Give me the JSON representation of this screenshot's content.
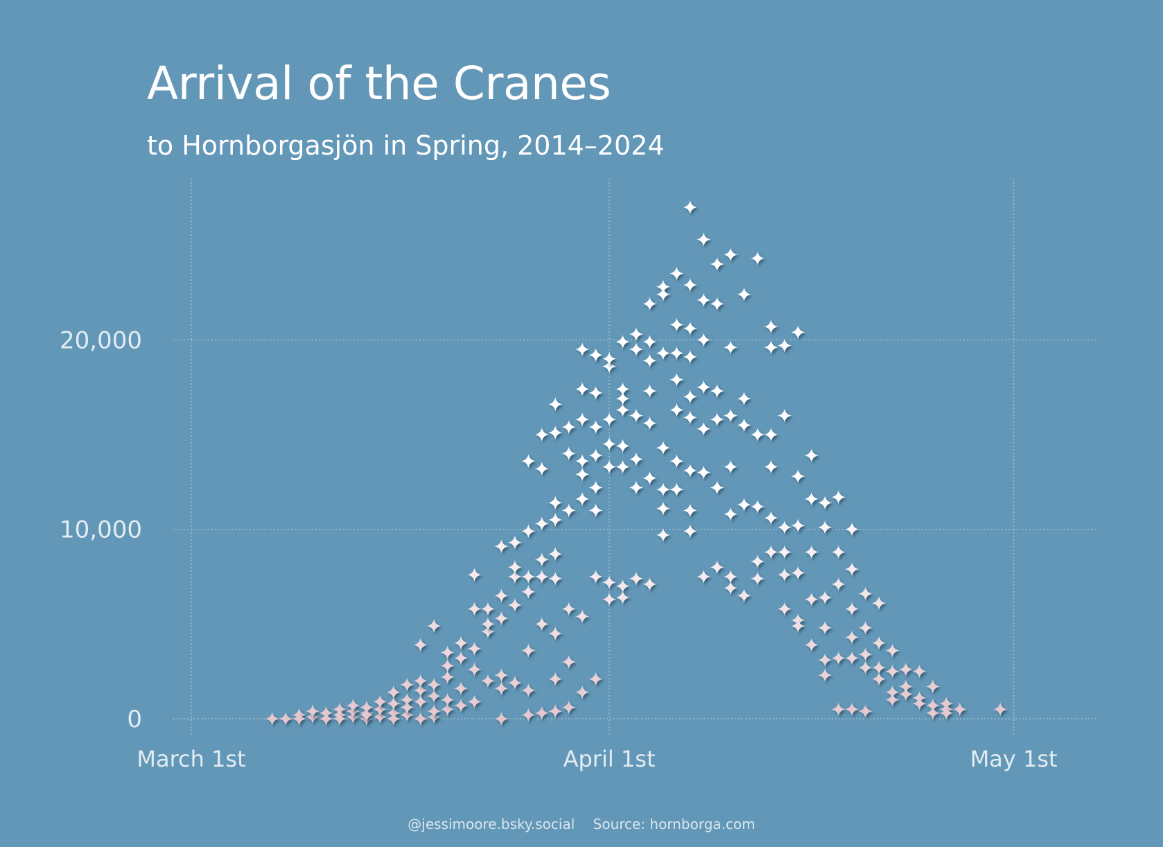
{
  "colors": {
    "background": "#6397b7",
    "grid": "#a9c7da",
    "star_high": "#ffffff",
    "star_low": "#e3c7cf"
  },
  "star_icon": "four-point-star",
  "caption": {
    "author": "@jessimoore.bsky.social",
    "source": "Source: hornborga.com"
  },
  "chart_data": {
    "type": "scatter",
    "title": "Arrival of the Cranes",
    "subtitle": "to Hornborgasjön in Spring, 2014–2024",
    "xlabel": "",
    "ylabel": "",
    "x_ticks": [
      {
        "date": "2024-03-01",
        "label": "March 1st"
      },
      {
        "date": "2024-04-01",
        "label": "April 1st"
      },
      {
        "date": "2024-05-01",
        "label": "May 1st"
      }
    ],
    "y_ticks": [
      {
        "value": 0,
        "label": "0"
      },
      {
        "value": 10000,
        "label": "10,000"
      },
      {
        "value": 20000,
        "label": "20,000"
      }
    ],
    "xlim": [
      "2024-03-01",
      "2024-05-04"
    ],
    "ylim": [
      0,
      28500
    ],
    "grid": true,
    "points": [
      [
        "03-07",
        0
      ],
      [
        "03-08",
        0
      ],
      [
        "03-09",
        200
      ],
      [
        "03-09",
        0
      ],
      [
        "03-10",
        100
      ],
      [
        "03-10",
        400
      ],
      [
        "03-11",
        300
      ],
      [
        "03-11",
        0
      ],
      [
        "03-12",
        500
      ],
      [
        "03-12",
        200
      ],
      [
        "03-12",
        0
      ],
      [
        "03-13",
        100
      ],
      [
        "03-13",
        400
      ],
      [
        "03-13",
        700
      ],
      [
        "03-14",
        0
      ],
      [
        "03-14",
        300
      ],
      [
        "03-14",
        600
      ],
      [
        "03-14",
        200
      ],
      [
        "03-15",
        100
      ],
      [
        "03-15",
        500
      ],
      [
        "03-15",
        900
      ],
      [
        "03-16",
        300
      ],
      [
        "03-16",
        0
      ],
      [
        "03-16",
        1400
      ],
      [
        "03-16",
        800
      ],
      [
        "03-17",
        200
      ],
      [
        "03-17",
        1000
      ],
      [
        "03-17",
        1800
      ],
      [
        "03-17",
        600
      ],
      [
        "03-18",
        0
      ],
      [
        "03-18",
        1500
      ],
      [
        "03-18",
        2000
      ],
      [
        "03-18",
        900
      ],
      [
        "03-18",
        3900
      ],
      [
        "03-19",
        100
      ],
      [
        "03-19",
        1200
      ],
      [
        "03-19",
        1800
      ],
      [
        "03-19",
        400
      ],
      [
        "03-19",
        4900
      ],
      [
        "03-20",
        500
      ],
      [
        "03-20",
        1000
      ],
      [
        "03-20",
        3500
      ],
      [
        "03-20",
        2800
      ],
      [
        "03-20",
        2200
      ],
      [
        "03-21",
        4000
      ],
      [
        "03-21",
        3200
      ],
      [
        "03-21",
        1600
      ],
      [
        "03-21",
        700
      ],
      [
        "03-22",
        5800
      ],
      [
        "03-22",
        2600
      ],
      [
        "03-22",
        3700
      ],
      [
        "03-22",
        900
      ],
      [
        "03-22",
        7600
      ],
      [
        "03-23",
        5800
      ],
      [
        "03-23",
        4600
      ],
      [
        "03-23",
        2000
      ],
      [
        "03-23",
        5000
      ],
      [
        "03-24",
        0
      ],
      [
        "03-24",
        6500
      ],
      [
        "03-24",
        5300
      ],
      [
        "03-24",
        2300
      ],
      [
        "03-24",
        9100
      ],
      [
        "03-24",
        1600
      ],
      [
        "03-25",
        7500
      ],
      [
        "03-25",
        8000
      ],
      [
        "03-25",
        6000
      ],
      [
        "03-25",
        9300
      ],
      [
        "03-25",
        1900
      ],
      [
        "03-26",
        9900
      ],
      [
        "03-26",
        6700
      ],
      [
        "03-26",
        3600
      ],
      [
        "03-26",
        1500
      ],
      [
        "03-26",
        13600
      ],
      [
        "03-26",
        7500
      ],
      [
        "03-26",
        200
      ],
      [
        "03-27",
        13200
      ],
      [
        "03-27",
        10300
      ],
      [
        "03-27",
        8400
      ],
      [
        "03-27",
        5000
      ],
      [
        "03-27",
        7500
      ],
      [
        "03-27",
        15000
      ],
      [
        "03-27",
        300
      ],
      [
        "03-28",
        10500
      ],
      [
        "03-28",
        16600
      ],
      [
        "03-28",
        11400
      ],
      [
        "03-28",
        15100
      ],
      [
        "03-28",
        8700
      ],
      [
        "03-28",
        4500
      ],
      [
        "03-28",
        2100
      ],
      [
        "03-28",
        7400
      ],
      [
        "03-28",
        400
      ],
      [
        "03-29",
        15400
      ],
      [
        "03-29",
        14000
      ],
      [
        "03-29",
        11000
      ],
      [
        "03-29",
        600
      ],
      [
        "03-29",
        5800
      ],
      [
        "03-29",
        3000
      ],
      [
        "03-30",
        15800
      ],
      [
        "03-30",
        13600
      ],
      [
        "03-30",
        12900
      ],
      [
        "03-30",
        17400
      ],
      [
        "03-30",
        11600
      ],
      [
        "03-30",
        5400
      ],
      [
        "03-30",
        1400
      ],
      [
        "03-30",
        19500
      ],
      [
        "03-31",
        15400
      ],
      [
        "03-31",
        19200
      ],
      [
        "03-31",
        12200
      ],
      [
        "03-31",
        11000
      ],
      [
        "03-31",
        7500
      ],
      [
        "03-31",
        2100
      ],
      [
        "03-31",
        17200
      ],
      [
        "03-31",
        13900
      ],
      [
        "04-01",
        18600
      ],
      [
        "04-01",
        15800
      ],
      [
        "04-01",
        14500
      ],
      [
        "04-01",
        13300
      ],
      [
        "04-01",
        7200
      ],
      [
        "04-01",
        6300
      ],
      [
        "04-01",
        19000
      ],
      [
        "04-02",
        16300
      ],
      [
        "04-02",
        17400
      ],
      [
        "04-02",
        13300
      ],
      [
        "04-02",
        14400
      ],
      [
        "04-02",
        7000
      ],
      [
        "04-02",
        6400
      ],
      [
        "04-02",
        19900
      ],
      [
        "04-02",
        16900
      ],
      [
        "04-03",
        19500
      ],
      [
        "04-03",
        16000
      ],
      [
        "04-03",
        12200
      ],
      [
        "04-03",
        13700
      ],
      [
        "04-03",
        20300
      ],
      [
        "04-03",
        7400
      ],
      [
        "04-04",
        21900
      ],
      [
        "04-04",
        17300
      ],
      [
        "04-04",
        15600
      ],
      [
        "04-04",
        12700
      ],
      [
        "04-04",
        19900
      ],
      [
        "04-04",
        18900
      ],
      [
        "04-04",
        7100
      ],
      [
        "04-05",
        22800
      ],
      [
        "04-05",
        19300
      ],
      [
        "04-05",
        14300
      ],
      [
        "04-05",
        12100
      ],
      [
        "04-05",
        11100
      ],
      [
        "04-05",
        9700
      ],
      [
        "04-05",
        22400
      ],
      [
        "04-06",
        23500
      ],
      [
        "04-06",
        20800
      ],
      [
        "04-06",
        17900
      ],
      [
        "04-06",
        16300
      ],
      [
        "04-06",
        13600
      ],
      [
        "04-06",
        12100
      ],
      [
        "04-06",
        19300
      ],
      [
        "04-07",
        27000
      ],
      [
        "04-07",
        22900
      ],
      [
        "04-07",
        20600
      ],
      [
        "04-07",
        17000
      ],
      [
        "04-07",
        15900
      ],
      [
        "04-07",
        13100
      ],
      [
        "04-07",
        11000
      ],
      [
        "04-07",
        9900
      ],
      [
        "04-07",
        19100
      ],
      [
        "04-08",
        25300
      ],
      [
        "04-08",
        22100
      ],
      [
        "04-08",
        20000
      ],
      [
        "04-08",
        17500
      ],
      [
        "04-08",
        15300
      ],
      [
        "04-08",
        13000
      ],
      [
        "04-08",
        7500
      ],
      [
        "04-09",
        24000
      ],
      [
        "04-09",
        21900
      ],
      [
        "04-09",
        17300
      ],
      [
        "04-09",
        12200
      ],
      [
        "04-09",
        8000
      ],
      [
        "04-09",
        15800
      ],
      [
        "04-10",
        24500
      ],
      [
        "04-10",
        19600
      ],
      [
        "04-10",
        16000
      ],
      [
        "04-10",
        13300
      ],
      [
        "04-10",
        10800
      ],
      [
        "04-10",
        7500
      ],
      [
        "04-10",
        6900
      ],
      [
        "04-11",
        16900
      ],
      [
        "04-11",
        15500
      ],
      [
        "04-11",
        11300
      ],
      [
        "04-11",
        6500
      ],
      [
        "04-11",
        22400
      ],
      [
        "04-12",
        24300
      ],
      [
        "04-12",
        15000
      ],
      [
        "04-12",
        11200
      ],
      [
        "04-12",
        7400
      ],
      [
        "04-12",
        8300
      ],
      [
        "04-13",
        20700
      ],
      [
        "04-13",
        19600
      ],
      [
        "04-13",
        15000
      ],
      [
        "04-13",
        13300
      ],
      [
        "04-13",
        10600
      ],
      [
        "04-13",
        8800
      ],
      [
        "04-14",
        19700
      ],
      [
        "04-14",
        16000
      ],
      [
        "04-14",
        10100
      ],
      [
        "04-14",
        8800
      ],
      [
        "04-14",
        7600
      ],
      [
        "04-14",
        5800
      ],
      [
        "04-15",
        20400
      ],
      [
        "04-15",
        12800
      ],
      [
        "04-15",
        10200
      ],
      [
        "04-15",
        7700
      ],
      [
        "04-15",
        5200
      ],
      [
        "04-15",
        4900
      ],
      [
        "04-16",
        13900
      ],
      [
        "04-16",
        11600
      ],
      [
        "04-16",
        8800
      ],
      [
        "04-16",
        6300
      ],
      [
        "04-16",
        3900
      ],
      [
        "04-17",
        11400
      ],
      [
        "04-17",
        10100
      ],
      [
        "04-17",
        6400
      ],
      [
        "04-17",
        4800
      ],
      [
        "04-17",
        2300
      ],
      [
        "04-17",
        3100
      ],
      [
        "04-18",
        11700
      ],
      [
        "04-18",
        8800
      ],
      [
        "04-18",
        7100
      ],
      [
        "04-18",
        3200
      ],
      [
        "04-18",
        500
      ],
      [
        "04-19",
        10000
      ],
      [
        "04-19",
        7900
      ],
      [
        "04-19",
        5800
      ],
      [
        "04-19",
        4300
      ],
      [
        "04-19",
        3200
      ],
      [
        "04-19",
        500
      ],
      [
        "04-20",
        6600
      ],
      [
        "04-20",
        4800
      ],
      [
        "04-20",
        3400
      ],
      [
        "04-20",
        2700
      ],
      [
        "04-20",
        400
      ],
      [
        "04-21",
        6100
      ],
      [
        "04-21",
        4000
      ],
      [
        "04-21",
        2700
      ],
      [
        "04-21",
        2100
      ],
      [
        "04-22",
        3600
      ],
      [
        "04-22",
        2500
      ],
      [
        "04-22",
        1400
      ],
      [
        "04-22",
        1000
      ],
      [
        "04-23",
        2600
      ],
      [
        "04-23",
        1700
      ],
      [
        "04-23",
        1300
      ],
      [
        "04-24",
        2500
      ],
      [
        "04-24",
        1100
      ],
      [
        "04-24",
        800
      ],
      [
        "04-25",
        1700
      ],
      [
        "04-25",
        700
      ],
      [
        "04-25",
        300
      ],
      [
        "04-26",
        800
      ],
      [
        "04-26",
        500
      ],
      [
        "04-26",
        300
      ],
      [
        "04-27",
        500
      ],
      [
        "04-30",
        500
      ]
    ]
  }
}
